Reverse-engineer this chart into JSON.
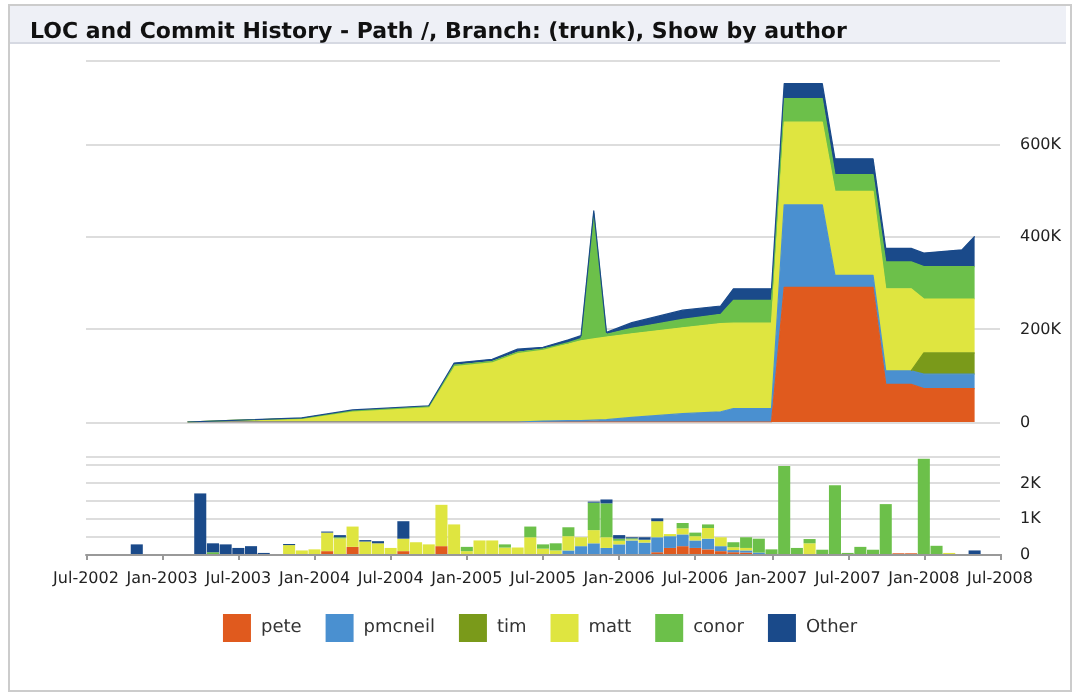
{
  "chart_data": [
    {
      "type": "area",
      "title": "LOC and Commit History - Path /, Branch: (trunk), Show by author",
      "stacked": true,
      "legend": "bottom",
      "grid": "y",
      "tick_labels": "y",
      "xlim": [
        "2002-07",
        "2008-07"
      ],
      "ylim": [
        0,
        780000
      ],
      "yticks": [
        {
          "value": 0,
          "label": "0"
        },
        {
          "value": 200000,
          "label": "200K"
        },
        {
          "value": 400000,
          "label": "400K"
        },
        {
          "value": 600000,
          "label": "600K"
        }
      ],
      "x": [
        "2003-03",
        "2003-06",
        "2003-12",
        "2004-04",
        "2004-10",
        "2004-12",
        "2005-03",
        "2005-05",
        "2005-07",
        "2005-09",
        "2005-10",
        "2005-11",
        "2005-12",
        "2006-02",
        "2006-06",
        "2006-09",
        "2006-10",
        "2006-12",
        "2007-01",
        "2007-02",
        "2007-05",
        "2007-06",
        "2007-09",
        "2007-10",
        "2007-12",
        "2008-01",
        "2008-04",
        "2008-05"
      ],
      "series": [
        {
          "name": "pete",
          "color": "#e05a1e",
          "values": [
            0,
            0,
            0,
            0,
            0,
            0,
            0,
            0,
            0,
            0,
            0,
            0,
            0,
            0,
            0,
            0,
            0,
            0,
            0,
            290000,
            290000,
            290000,
            290000,
            81000,
            81000,
            72000,
            72000,
            72000
          ]
        },
        {
          "name": "pmcneil",
          "color": "#4a90d0",
          "values": [
            0,
            0,
            0,
            0,
            0,
            0,
            0,
            0,
            2000,
            3000,
            3000,
            4000,
            5000,
            10000,
            18000,
            22000,
            29000,
            29000,
            29000,
            178000,
            178000,
            26000,
            26000,
            29000,
            29000,
            31000,
            31000,
            31000
          ]
        },
        {
          "name": "tim",
          "color": "#7a9a1a",
          "values": [
            null,
            null,
            null,
            null,
            null,
            null,
            null,
            null,
            null,
            null,
            null,
            null,
            null,
            null,
            null,
            null,
            null,
            null,
            null,
            null,
            null,
            null,
            null,
            null,
            0,
            46000,
            46000,
            46000
          ]
        },
        {
          "name": "matt",
          "color": "#dfe540",
          "values": [
            0,
            3000,
            8000,
            24000,
            33000,
            122000,
            130000,
            150000,
            155000,
            165000,
            172000,
            175000,
            178000,
            180000,
            185000,
            190000,
            184000,
            184000,
            184000,
            178000,
            178000,
            181000,
            181000,
            177000,
            177000,
            116000,
            116000,
            116000
          ]
        },
        {
          "name": "conor",
          "color": "#6cc04a",
          "values": [
            0,
            0,
            0,
            0,
            0,
            0,
            0,
            0,
            0,
            3000,
            5000,
            270000,
            6000,
            12000,
            18000,
            20000,
            49000,
            49000,
            49000,
            51000,
            51000,
            36000,
            36000,
            58000,
            58000,
            70000,
            70000,
            70000
          ]
        },
        {
          "name": "Other",
          "color": "#1a4a8a",
          "values": [
            0,
            0,
            1000,
            2000,
            2000,
            5000,
            5000,
            7000,
            4000,
            6000,
            6000,
            6000,
            4000,
            12000,
            20000,
            18000,
            25000,
            25000,
            25000,
            32000,
            32000,
            34000,
            34000,
            29000,
            29000,
            29000,
            36000,
            65000
          ]
        }
      ]
    },
    {
      "type": "bar",
      "stacked": true,
      "grid": "y",
      "xlim": [
        "2002-07",
        "2008-07"
      ],
      "ylim": [
        0,
        2750
      ],
      "yticks": [
        {
          "value": 0,
          "label": "0"
        },
        {
          "value": 1000,
          "label": "1K"
        },
        {
          "value": 2000,
          "label": "2K"
        }
      ],
      "xticks": [
        {
          "value": "2002-07",
          "label": "Jul-2002"
        },
        {
          "value": "2003-01",
          "label": "Jan-2003"
        },
        {
          "value": "2003-07",
          "label": "Jul-2003"
        },
        {
          "value": "2004-01",
          "label": "Jan-2004"
        },
        {
          "value": "2004-07",
          "label": "Jul-2004"
        },
        {
          "value": "2005-01",
          "label": "Jan-2005"
        },
        {
          "value": "2005-07",
          "label": "Jul-2005"
        },
        {
          "value": "2006-01",
          "label": "Jan-2006"
        },
        {
          "value": "2006-07",
          "label": "Jul-2006"
        },
        {
          "value": "2007-01",
          "label": "Jan-2007"
        },
        {
          "value": "2007-07",
          "label": "Jul-2007"
        },
        {
          "value": "2008-01",
          "label": "Jan-2008"
        },
        {
          "value": "2008-07",
          "label": "Jul-2008"
        }
      ],
      "x": [
        "2002-11",
        "2003-04",
        "2003-05",
        "2003-06",
        "2003-07",
        "2003-08",
        "2003-09",
        "2003-10",
        "2003-11",
        "2003-12",
        "2004-01",
        "2004-02",
        "2004-03",
        "2004-04",
        "2004-05",
        "2004-06",
        "2004-07",
        "2004-08",
        "2004-09",
        "2004-10",
        "2004-11",
        "2004-12",
        "2005-01",
        "2005-02",
        "2005-03",
        "2005-04",
        "2005-05",
        "2005-06",
        "2005-07",
        "2005-08",
        "2005-09",
        "2005-10",
        "2005-11",
        "2005-12",
        "2006-01",
        "2006-02",
        "2006-03",
        "2006-04",
        "2006-05",
        "2006-06",
        "2006-07",
        "2006-08",
        "2006-09",
        "2006-10",
        "2006-11",
        "2006-12",
        "2007-01",
        "2007-02",
        "2007-03",
        "2007-04",
        "2007-05",
        "2007-06",
        "2007-07",
        "2007-08",
        "2007-09",
        "2007-10",
        "2007-11",
        "2007-12",
        "2008-01",
        "2008-02",
        "2008-03",
        "2008-05"
      ],
      "series": [
        {
          "color": "#e05a1e",
          "values": [
            0,
            0,
            0,
            0,
            0,
            0,
            0,
            0,
            0,
            0,
            0,
            80,
            0,
            200,
            0,
            0,
            0,
            80,
            0,
            0,
            220,
            0,
            0,
            0,
            0,
            0,
            0,
            0,
            0,
            0,
            0,
            0,
            0,
            0,
            0,
            0,
            0,
            50,
            170,
            220,
            170,
            130,
            80,
            50,
            40,
            0,
            0,
            0,
            0,
            0,
            0,
            0,
            0,
            0,
            0,
            0,
            20,
            20,
            0,
            0,
            0,
            0
          ]
        },
        {
          "color": "#4a90d0",
          "values": [
            0,
            0,
            0,
            0,
            0,
            0,
            0,
            0,
            0,
            0,
            0,
            0,
            0,
            0,
            0,
            0,
            0,
            0,
            0,
            0,
            0,
            0,
            0,
            0,
            0,
            0,
            0,
            0,
            0,
            0,
            100,
            220,
            300,
            170,
            270,
            380,
            320,
            420,
            330,
            330,
            210,
            300,
            140,
            60,
            60,
            40,
            0,
            0,
            0,
            0,
            0,
            0,
            0,
            0,
            0,
            0,
            0,
            0,
            0,
            0,
            0,
            0
          ]
        },
        {
          "color": "#7a9a1a",
          "values": [
            0,
            0,
            0,
            0,
            0,
            0,
            0,
            0,
            0,
            0,
            0,
            0,
            0,
            0,
            0,
            0,
            0,
            0,
            0,
            0,
            0,
            0,
            0,
            0,
            0,
            0,
            0,
            0,
            0,
            0,
            0,
            0,
            0,
            0,
            0,
            0,
            0,
            0,
            0,
            0,
            0,
            0,
            0,
            0,
            0,
            0,
            0,
            0,
            0,
            0,
            0,
            0,
            0,
            0,
            0,
            0,
            0,
            0,
            0,
            0,
            0,
            0
          ]
        },
        {
          "color": "#dfe540",
          "values": [
            0,
            0,
            0,
            0,
            0,
            0,
            0,
            0,
            250,
            100,
            130,
            520,
            440,
            570,
            350,
            300,
            170,
            350,
            330,
            270,
            1160,
            830,
            80,
            380,
            380,
            180,
            180,
            470,
            150,
            100,
            400,
            250,
            370,
            300,
            100,
            30,
            80,
            450,
            60,
            170,
            120,
            300,
            250,
            80,
            70,
            0,
            0,
            0,
            0,
            300,
            0,
            0,
            0,
            0,
            0,
            0,
            0,
            0,
            0,
            0,
            30,
            0
          ]
        },
        {
          "color": "#6cc04a",
          "values": [
            0,
            0,
            50,
            0,
            0,
            0,
            0,
            0,
            0,
            0,
            0,
            0,
            30,
            0,
            0,
            0,
            0,
            0,
            0,
            0,
            0,
            0,
            120,
            0,
            0,
            90,
            0,
            300,
            120,
            200,
            250,
            0,
            770,
            950,
            60,
            30,
            0,
            0,
            0,
            150,
            100,
            100,
            0,
            140,
            300,
            390,
            130,
            2470,
            170,
            120,
            120,
            1930,
            30,
            200,
            120,
            1400,
            0,
            0,
            2670,
            230,
            0,
            0
          ]
        },
        {
          "color": "#1a4a8a",
          "values": [
            270,
            1700,
            250,
            270,
            170,
            220,
            30,
            0,
            30,
            0,
            0,
            30,
            60,
            0,
            40,
            60,
            0,
            490,
            0,
            0,
            0,
            0,
            0,
            0,
            0,
            0,
            0,
            0,
            0,
            0,
            0,
            0,
            30,
            110,
            100,
            30,
            70,
            80,
            0,
            0,
            0,
            0,
            0,
            0,
            0,
            0,
            0,
            0,
            0,
            0,
            0,
            0,
            0,
            0,
            0,
            0,
            0,
            0,
            0,
            0,
            0,
            100
          ]
        }
      ]
    }
  ]
}
